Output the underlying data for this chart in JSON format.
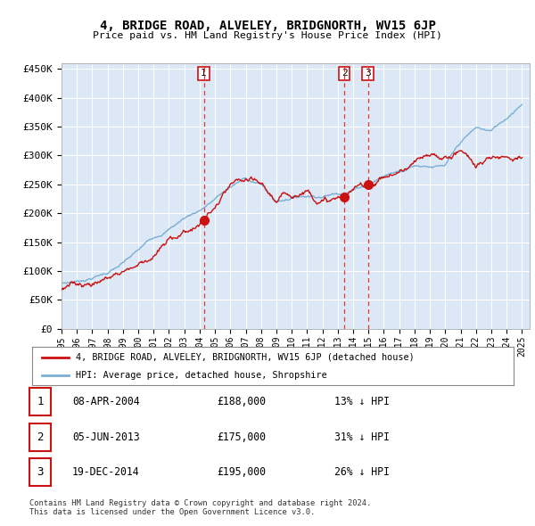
{
  "title": "4, BRIDGE ROAD, ALVELEY, BRIDGNORTH, WV15 6JP",
  "subtitle": "Price paid vs. HM Land Registry's House Price Index (HPI)",
  "ylabel_ticks": [
    "£0",
    "£50K",
    "£100K",
    "£150K",
    "£200K",
    "£250K",
    "£300K",
    "£350K",
    "£400K",
    "£450K"
  ],
  "ytick_values": [
    0,
    50000,
    100000,
    150000,
    200000,
    250000,
    300000,
    350000,
    400000,
    450000
  ],
  "ylim": [
    0,
    460000
  ],
  "xlim_start": 1995.0,
  "xlim_end": 2025.5,
  "plot_bg_color": "#dce8f5",
  "grid_color": "#ffffff",
  "hpi_color": "#7aafd4",
  "price_color": "#cc1111",
  "marker_color": "#cc1111",
  "vline_color": "#ee3333",
  "transactions": [
    {
      "id": 1,
      "date": 2004.27,
      "price": 188000
    },
    {
      "id": 2,
      "date": 2013.42,
      "price": 175000
    },
    {
      "id": 3,
      "date": 2014.96,
      "price": 195000
    }
  ],
  "legend_line1": "4, BRIDGE ROAD, ALVELEY, BRIDGNORTH, WV15 6JP (detached house)",
  "legend_line2": "HPI: Average price, detached house, Shropshire",
  "footer1": "Contains HM Land Registry data © Crown copyright and database right 2024.",
  "footer2": "This data is licensed under the Open Government Licence v3.0.",
  "table_rows": [
    {
      "id": "1",
      "date": "08-APR-2004",
      "price": "£188,000",
      "pct": "13% ↓ HPI"
    },
    {
      "id": "2",
      "date": "05-JUN-2013",
      "price": "£175,000",
      "pct": "31% ↓ HPI"
    },
    {
      "id": "3",
      "date": "19-DEC-2014",
      "price": "£195,000",
      "pct": "26% ↓ HPI"
    }
  ],
  "hpi_anchors_x": [
    1995,
    1996,
    1997,
    1998,
    1999,
    2000,
    2001,
    2002,
    2003,
    2004,
    2005,
    2006,
    2007,
    2008,
    2009,
    2010,
    2011,
    2012,
    2013,
    2014,
    2015,
    2016,
    2017,
    2018,
    2019,
    2020,
    2021,
    2022,
    2023,
    2024,
    2025
  ],
  "hpi_anchors_y": [
    78000,
    82000,
    90000,
    100000,
    115000,
    135000,
    158000,
    175000,
    195000,
    210000,
    230000,
    250000,
    265000,
    255000,
    225000,
    235000,
    240000,
    242000,
    248000,
    258000,
    270000,
    285000,
    295000,
    308000,
    310000,
    308000,
    345000,
    368000,
    362000,
    385000,
    415000
  ],
  "price_anchors_x": [
    1995,
    1996,
    1997,
    1998,
    1999,
    2000,
    2001,
    2002,
    2003,
    2004,
    2005,
    2006,
    2007,
    2008,
    2009,
    2010,
    2011,
    2012,
    2013,
    2014,
    2015,
    2016,
    2017,
    2018,
    2019,
    2020,
    2021,
    2022,
    2023,
    2024,
    2025
  ],
  "price_anchors_y": [
    68000,
    72000,
    80000,
    90000,
    105000,
    120000,
    140000,
    160000,
    178000,
    192000,
    218000,
    248000,
    248000,
    230000,
    200000,
    210000,
    225000,
    215000,
    215000,
    225000,
    240000,
    255000,
    265000,
    278000,
    280000,
    275000,
    295000,
    270000,
    280000,
    290000,
    300000
  ]
}
